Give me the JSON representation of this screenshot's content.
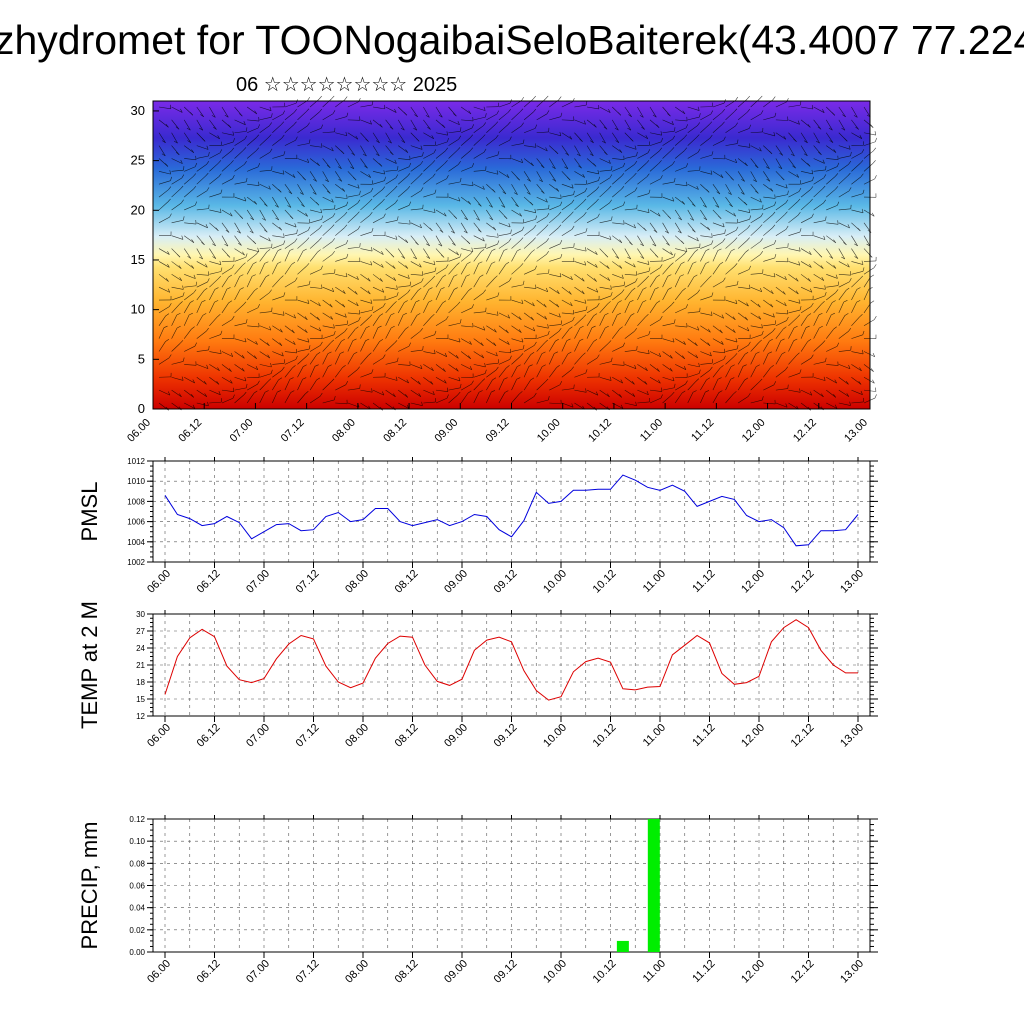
{
  "header": {
    "title": "zhydromet for TOONogaibaiSeloBaiterek(43.4007 77.224",
    "subtitle": "06 ☆☆☆☆☆☆☆☆ 2025"
  },
  "chart_data": [
    {
      "type": "heatmap",
      "title": "",
      "xlabel": "",
      "ylabel": "",
      "xtick_labels": [
        "06.00",
        "06.12",
        "07.00",
        "07.12",
        "08.00",
        "08.12",
        "09.00",
        "09.12",
        "10.00",
        "10.12",
        "11.00",
        "11.12",
        "12.00",
        "12.12",
        "13.00"
      ],
      "ylim": [
        0,
        31
      ],
      "yticks": [
        0,
        5,
        10,
        15,
        20,
        25,
        30
      ],
      "colorscale": [
        "#cc0000",
        "#ee3300",
        "#ff7a10",
        "#ffb530",
        "#ffe070",
        "#fff6b0",
        "#d8eef6",
        "#5ab8e6",
        "#2a6ad8",
        "#3a2ad0",
        "#7a2ae8"
      ],
      "overlay": "wind barbs"
    },
    {
      "type": "line",
      "ylabel": "PMSL",
      "ylim": [
        1002,
        1012
      ],
      "yticks": [
        1002,
        1004,
        1006,
        1008,
        1010,
        1012
      ],
      "xtick_labels": [
        "06.00",
        "06.12",
        "07.00",
        "07.12",
        "08.00",
        "08.12",
        "09.00",
        "09.12",
        "10.00",
        "10.12",
        "11.00",
        "11.12",
        "12.00",
        "12.12",
        "13.00"
      ],
      "grid": true,
      "series": [
        {
          "color": "#0000dd",
          "values": [
            1008.6,
            1006.7,
            1006.3,
            1005.6,
            1005.8,
            1006.5,
            1005.9,
            1004.3,
            1005.0,
            1005.7,
            1005.8,
            1005.1,
            1005.2,
            1006.5,
            1006.9,
            1006.0,
            1006.2,
            1007.3,
            1007.3,
            1006.0,
            1005.6,
            1005.9,
            1006.2,
            1005.6,
            1006.0,
            1006.7,
            1006.5,
            1005.2,
            1004.5,
            1006.1,
            1008.9,
            1007.8,
            1008.0,
            1009.1,
            1009.1,
            1009.2,
            1009.2,
            1010.6,
            1010.1,
            1009.4,
            1009.1,
            1009.6,
            1009.0,
            1007.5,
            1008.0,
            1008.5,
            1008.2,
            1006.6,
            1006.0,
            1006.2,
            1005.4,
            1003.6,
            1003.7,
            1005.1,
            1005.1,
            1005.2,
            1006.7
          ]
        }
      ]
    },
    {
      "type": "line",
      "ylabel": "TEMP at 2 M",
      "ylim": [
        12,
        30
      ],
      "yticks": [
        12,
        15,
        18,
        21,
        24,
        27,
        30
      ],
      "xtick_labels": [
        "06.00",
        "06.12",
        "07.00",
        "07.12",
        "08.00",
        "08.12",
        "09.00",
        "09.12",
        "10.00",
        "10.12",
        "11.00",
        "11.12",
        "12.00",
        "12.12",
        "13.00"
      ],
      "grid": true,
      "series": [
        {
          "color": "#dd0000",
          "values": [
            15.8,
            22.5,
            25.8,
            27.3,
            26.0,
            20.8,
            18.4,
            17.9,
            18.6,
            22.1,
            24.7,
            26.2,
            25.6,
            20.8,
            18.0,
            17.0,
            17.8,
            22.2,
            24.8,
            26.1,
            25.9,
            21.0,
            18.1,
            17.4,
            18.5,
            23.6,
            25.4,
            25.9,
            25.1,
            20.0,
            16.5,
            14.8,
            15.4,
            19.8,
            21.6,
            22.2,
            21.5,
            16.8,
            16.6,
            17.1,
            17.2,
            22.8,
            24.5,
            26.2,
            24.9,
            19.5,
            17.6,
            17.9,
            19.0,
            25.1,
            27.6,
            29.0,
            27.6,
            23.6,
            21.0,
            19.6,
            19.6
          ]
        }
      ]
    },
    {
      "type": "bar",
      "ylabel": "PRECIP, mm",
      "ylim": [
        0,
        0.12
      ],
      "yticks": [
        "0.00",
        "0.02",
        "0.04",
        "0.06",
        "0.08",
        "0.10",
        "0.12"
      ],
      "xtick_labels": [
        "06.00",
        "06.12",
        "07.00",
        "07.12",
        "08.00",
        "08.12",
        "09.00",
        "09.12",
        "10.00",
        "10.12",
        "11.00",
        "11.12",
        "12.00",
        "12.12",
        "13.00"
      ],
      "grid": true,
      "bars": [
        {
          "x": 9.25,
          "value": 0.01,
          "color": "#00ee00"
        },
        {
          "x": 9.875,
          "value": 0.12,
          "color": "#00ee00"
        }
      ]
    }
  ]
}
